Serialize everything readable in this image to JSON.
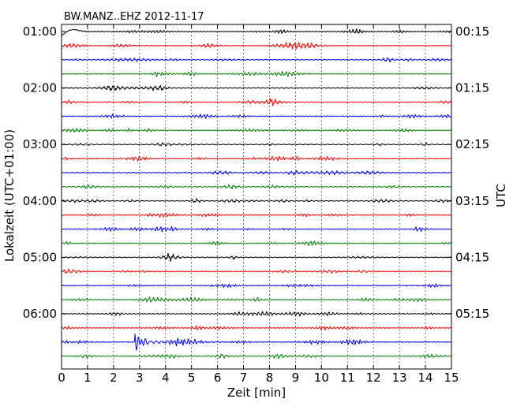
{
  "chart_data": {
    "type": "line",
    "title": "BW.MANZ..EHZ 2012-11-17",
    "xlabel": "Zeit  [min]",
    "ylabel_left": "Lokalzeit (UTC+01:00)",
    "ylabel_right": "UTC",
    "xlim": [
      0,
      15
    ],
    "x_ticks": [
      "0",
      "1",
      "2",
      "3",
      "4",
      "5",
      "6",
      "7",
      "8",
      "9",
      "10",
      "11",
      "12",
      "13",
      "14",
      "15"
    ],
    "left_tick_labels": [
      "01:00",
      "02:00",
      "03:00",
      "04:00",
      "05:00",
      "06:00"
    ],
    "right_tick_labels": [
      "00:15",
      "01:15",
      "02:15",
      "03:15",
      "04:15",
      "05:15"
    ],
    "trace_count": 24,
    "trace_minutes": 15,
    "trace_colors": [
      "#000000",
      "#ff0000",
      "#0000ff",
      "#008000"
    ],
    "vertical_grid": "dotted",
    "events": [
      {
        "trace": 9,
        "minute": 9.0,
        "note": "small local burst"
      },
      {
        "trace": 22,
        "minute": 2.85,
        "note": "seismic event onset"
      }
    ]
  }
}
